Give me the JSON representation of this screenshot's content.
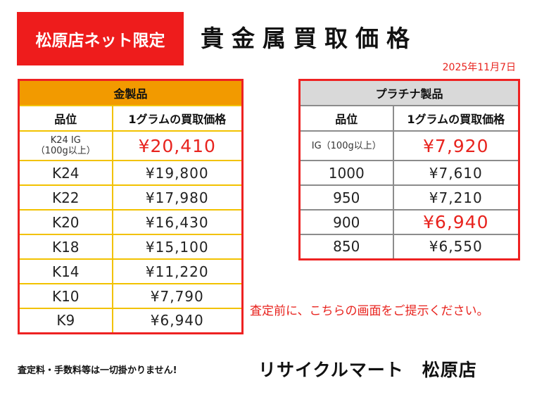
{
  "header": {
    "badge": "松原店ネット限定",
    "title": "貴金属買取価格",
    "date": "2025年11月7日"
  },
  "gold_table": {
    "title": "金製品",
    "col_rank": "品位",
    "col_price": "1グラムの買取価格",
    "rows": [
      {
        "rank": "K24 IG\n（100g以上）",
        "price": "¥20,410"
      },
      {
        "rank": "K24",
        "price": "¥19,800"
      },
      {
        "rank": "K22",
        "price": "¥17,980"
      },
      {
        "rank": "K20",
        "price": "¥16,430"
      },
      {
        "rank": "K18",
        "price": "¥15,100"
      },
      {
        "rank": "K14",
        "price": "¥11,220"
      },
      {
        "rank": "K10",
        "price": "¥7,790"
      },
      {
        "rank": "K9",
        "price": "¥6,940"
      }
    ]
  },
  "platinum_table": {
    "title": "プラチナ製品",
    "col_rank": "品位",
    "col_price": "1グラムの買取価格",
    "rows": [
      {
        "rank": "IG（100g以上）",
        "price": "¥7,920"
      },
      {
        "rank": "1000",
        "price": "¥7,610"
      },
      {
        "rank": "950",
        "price": "¥7,210"
      },
      {
        "rank": "900",
        "price": "¥6,940"
      },
      {
        "rank": "850",
        "price": "¥6,550"
      }
    ]
  },
  "notice": "査定前に、こちらの画面をご提示ください。",
  "fee_note": "査定料・手数料等は一切掛かりません!",
  "store_name": "リサイクルマート　松原店",
  "colors": {
    "accent_red": "#ee1c1c",
    "gold_header": "#f29a00",
    "gold_border": "#f2c200",
    "platinum_header": "#d9d9d9"
  }
}
